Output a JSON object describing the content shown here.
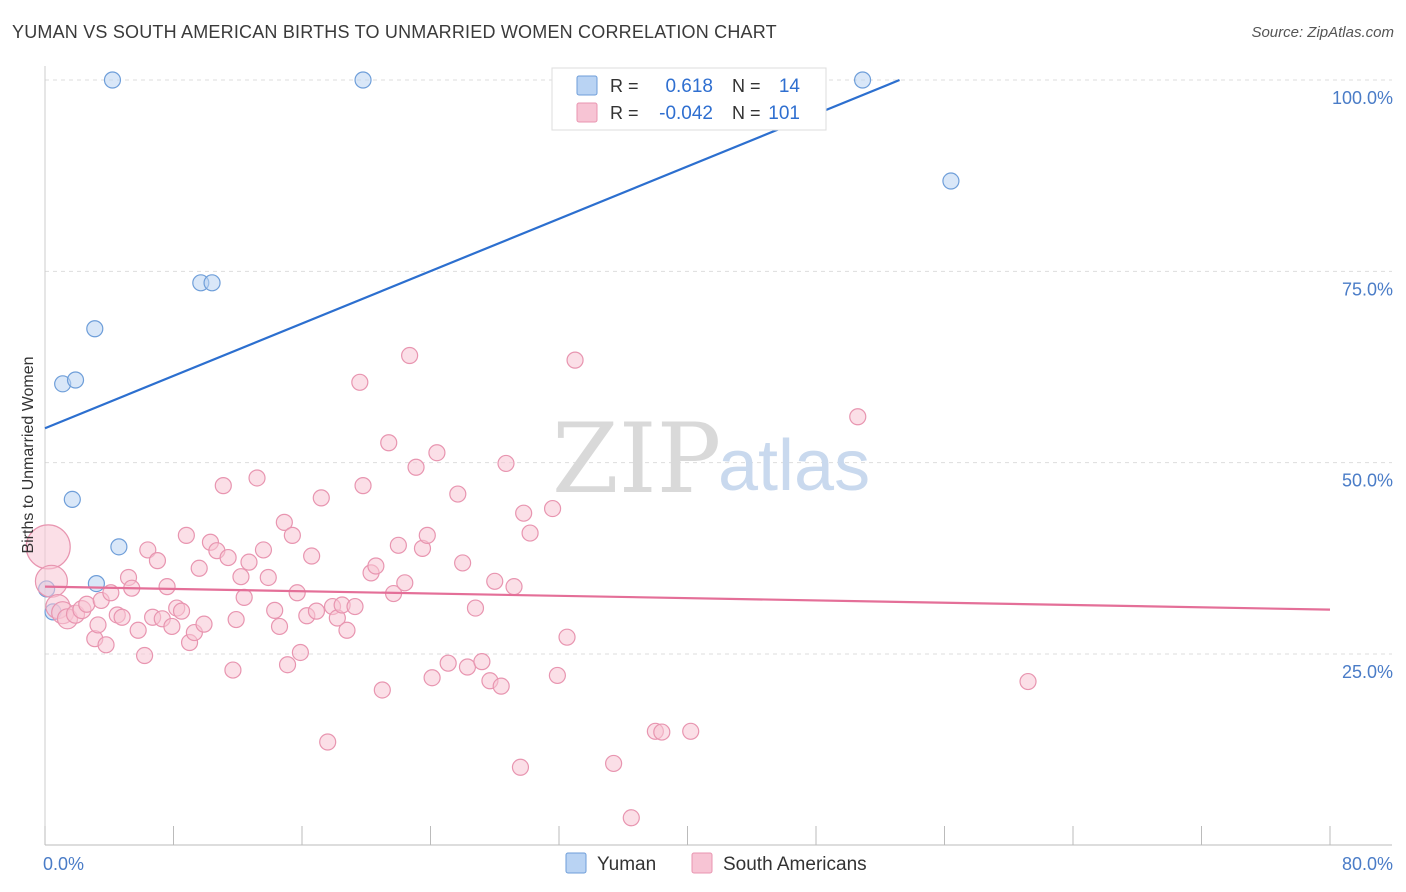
{
  "header": {
    "title": "YUMAN VS SOUTH AMERICAN BIRTHS TO UNMARRIED WOMEN CORRELATION CHART",
    "source": "Source: ZipAtlas.com"
  },
  "watermark": {
    "zip": "ZIP",
    "atlas": "atlas"
  },
  "colors": {
    "yuman_fill": "#b9d3f3",
    "yuman_stroke": "#6e9ed9",
    "yuman_line": "#2c6fcf",
    "south_fill": "#f7c4d4",
    "south_stroke": "#e895b0",
    "south_line": "#e46f98",
    "grid": "#dddddd",
    "tick_label": "#4a7cc7"
  },
  "legend_top": {
    "rows": [
      {
        "r_label": "R =",
        "r_value": "0.618",
        "n_label": "N =",
        "n_value": "14",
        "series": "yuman"
      },
      {
        "r_label": "R =",
        "r_value": "-0.042",
        "n_label": "N =",
        "n_value": "101",
        "series": "south"
      }
    ]
  },
  "legend_bottom": [
    {
      "label": "Yuman",
      "series": "yuman"
    },
    {
      "label": "South Americans",
      "series": "south"
    }
  ],
  "chart_data": {
    "type": "scatter",
    "title": "YUMAN VS SOUTH AMERICAN BIRTHS TO UNMARRIED WOMEN CORRELATION CHART",
    "ylabel": "Births to Unmarried Women",
    "xlabel": "",
    "xlim": [
      0,
      80
    ],
    "ylim": [
      0,
      102
    ],
    "x_tick_labels": [
      {
        "value": 0,
        "label": "0.0%"
      },
      {
        "value": 80,
        "label": "80.0%"
      }
    ],
    "y_tick_labels": [
      {
        "value": 25,
        "label": "25.0%"
      },
      {
        "value": 50,
        "label": "50.0%"
      },
      {
        "value": 75,
        "label": "75.0%"
      },
      {
        "value": 100,
        "label": "100.0%"
      }
    ],
    "grid": true,
    "legend_position": "top-center",
    "series": [
      {
        "name": "Yuman",
        "key": "yuman",
        "R": 0.618,
        "N": 14,
        "trend": {
          "x": [
            0,
            53.2
          ],
          "y": [
            54.5,
            100
          ]
        },
        "points": [
          [
            0.1,
            33.5
          ],
          [
            0.5,
            30.5
          ],
          [
            1.1,
            60.3
          ],
          [
            1.9,
            60.8
          ],
          [
            1.7,
            45.2
          ],
          [
            3.1,
            67.5
          ],
          [
            4.6,
            39.0
          ],
          [
            3.2,
            34.2
          ],
          [
            4.2,
            100
          ],
          [
            9.7,
            73.5
          ],
          [
            10.4,
            73.5
          ],
          [
            19.8,
            100
          ],
          [
            50.9,
            100
          ],
          [
            56.4,
            86.8
          ]
        ]
      },
      {
        "name": "South Americans",
        "key": "south",
        "R": -0.042,
        "N": 101,
        "trend": {
          "x": [
            0,
            80
          ],
          "y": [
            33.8,
            30.8
          ]
        },
        "points": [
          [
            0.2,
            39.0,
            22
          ],
          [
            0.4,
            34.5,
            16
          ],
          [
            0.8,
            31.2,
            12
          ],
          [
            1.1,
            30.4,
            11
          ],
          [
            1.4,
            29.6,
            10
          ],
          [
            1.9,
            30.2,
            9
          ],
          [
            2.3,
            30.8,
            9
          ],
          [
            2.6,
            31.5,
            8
          ],
          [
            3.1,
            27.0,
            8
          ],
          [
            3.3,
            28.8,
            8
          ],
          [
            3.5,
            32.0,
            8
          ],
          [
            3.8,
            26.2,
            8
          ],
          [
            4.1,
            33.0,
            8
          ],
          [
            4.5,
            30.1,
            8
          ],
          [
            4.8,
            29.8,
            8
          ],
          [
            5.2,
            35.0,
            8
          ],
          [
            5.4,
            33.6,
            8
          ],
          [
            5.8,
            28.1,
            8
          ],
          [
            6.2,
            24.8,
            8
          ],
          [
            6.4,
            38.6,
            8
          ],
          [
            6.7,
            29.8,
            8
          ],
          [
            7.0,
            37.2,
            8
          ],
          [
            7.3,
            29.6,
            8
          ],
          [
            7.6,
            33.8,
            8
          ],
          [
            7.9,
            28.6,
            8
          ],
          [
            8.2,
            31.0,
            8
          ],
          [
            8.5,
            30.6,
            8
          ],
          [
            8.8,
            40.5,
            8
          ],
          [
            9.0,
            26.5,
            8
          ],
          [
            9.3,
            27.8,
            8
          ],
          [
            9.6,
            36.2,
            8
          ],
          [
            9.9,
            28.9,
            8
          ],
          [
            10.3,
            39.6,
            8
          ],
          [
            10.7,
            38.5,
            8
          ],
          [
            11.1,
            47.0,
            8
          ],
          [
            11.4,
            37.6,
            8
          ],
          [
            11.7,
            22.9,
            8
          ],
          [
            11.9,
            29.5,
            8
          ],
          [
            12.2,
            35.1,
            8
          ],
          [
            12.4,
            32.4,
            8
          ],
          [
            12.7,
            37.0,
            8
          ],
          [
            13.2,
            48.0,
            8
          ],
          [
            13.6,
            38.6,
            8
          ],
          [
            13.9,
            35.0,
            8
          ],
          [
            14.3,
            30.7,
            8
          ],
          [
            14.6,
            28.6,
            8
          ],
          [
            14.9,
            42.2,
            8
          ],
          [
            15.1,
            23.6,
            8
          ],
          [
            15.4,
            40.5,
            8
          ],
          [
            15.7,
            33.0,
            8
          ],
          [
            15.9,
            25.2,
            8
          ],
          [
            16.3,
            30.0,
            8
          ],
          [
            16.6,
            37.8,
            8
          ],
          [
            16.9,
            30.6,
            8
          ],
          [
            17.2,
            45.4,
            8
          ],
          [
            17.6,
            13.5,
            8
          ],
          [
            17.9,
            31.2,
            8
          ],
          [
            18.2,
            29.7,
            8
          ],
          [
            18.5,
            31.4,
            8
          ],
          [
            18.8,
            28.1,
            8
          ],
          [
            19.3,
            31.2,
            8
          ],
          [
            19.6,
            60.5,
            8
          ],
          [
            19.8,
            47.0,
            8
          ],
          [
            20.3,
            35.6,
            8
          ],
          [
            20.6,
            36.5,
            8
          ],
          [
            21.0,
            20.3,
            8
          ],
          [
            21.4,
            52.6,
            8
          ],
          [
            21.7,
            32.9,
            8
          ],
          [
            22.0,
            39.2,
            8
          ],
          [
            22.4,
            34.3,
            8
          ],
          [
            22.7,
            64.0,
            8
          ],
          [
            23.1,
            49.4,
            8
          ],
          [
            23.5,
            38.8,
            8
          ],
          [
            23.8,
            40.5,
            8
          ],
          [
            24.1,
            21.9,
            8
          ],
          [
            24.4,
            51.3,
            8
          ],
          [
            25.1,
            23.8,
            8
          ],
          [
            25.7,
            45.9,
            8
          ],
          [
            26.0,
            36.9,
            8
          ],
          [
            26.3,
            23.3,
            8
          ],
          [
            26.8,
            31.0,
            8
          ],
          [
            27.2,
            24.0,
            8
          ],
          [
            27.7,
            21.5,
            8
          ],
          [
            28.0,
            34.5,
            8
          ],
          [
            28.4,
            20.8,
            8
          ],
          [
            28.7,
            49.9,
            8
          ],
          [
            29.2,
            33.8,
            8
          ],
          [
            29.6,
            10.2,
            8
          ],
          [
            29.8,
            43.4,
            8
          ],
          [
            30.2,
            40.8,
            8
          ],
          [
            31.6,
            44.0,
            8
          ],
          [
            31.9,
            22.2,
            8
          ],
          [
            32.5,
            27.2,
            8
          ],
          [
            33.0,
            63.4,
            8
          ],
          [
            35.4,
            10.7,
            8
          ],
          [
            36.5,
            3.6,
            8
          ],
          [
            38.0,
            14.9,
            8
          ],
          [
            40.2,
            14.9,
            8
          ],
          [
            50.6,
            56.0,
            8
          ],
          [
            61.2,
            21.4,
            8
          ],
          [
            38.4,
            14.8,
            8
          ]
        ]
      }
    ]
  }
}
